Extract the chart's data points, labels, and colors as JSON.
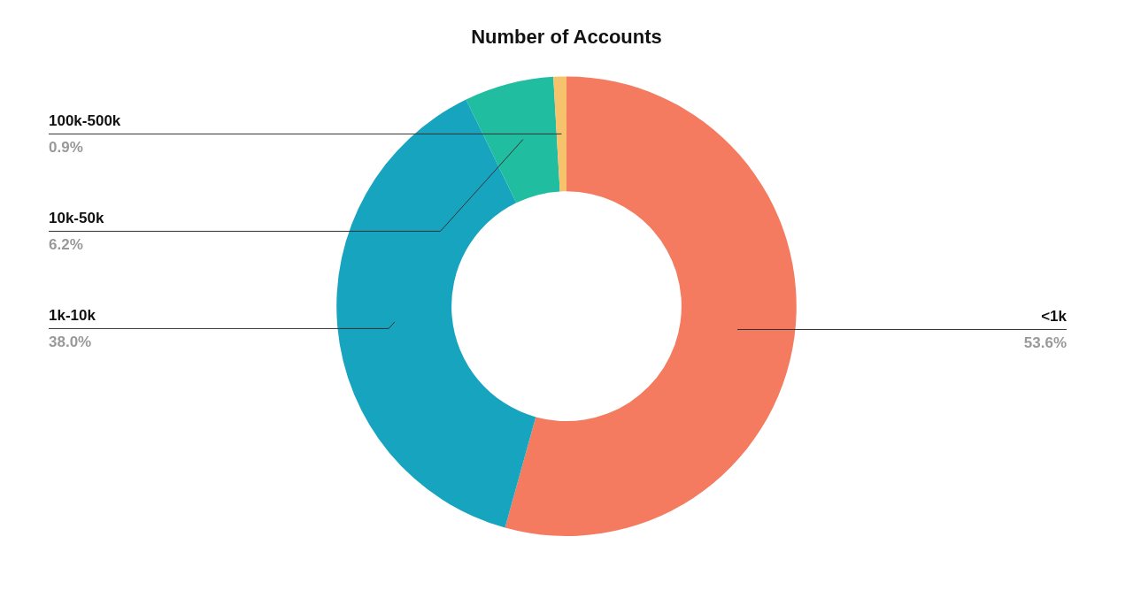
{
  "chart_data": {
    "type": "donut",
    "title": "Number of Accounts",
    "categories": [
      "<1k",
      "1k-10k",
      "10k-50k",
      "100k-500k"
    ],
    "values": [
      53.6,
      38.0,
      6.2,
      0.9
    ],
    "value_labels": [
      "53.6%",
      "38.0%",
      "6.2%",
      "0.9%"
    ],
    "colors": [
      "#f47b60",
      "#17a4bf",
      "#20bda0",
      "#f6c26b"
    ],
    "legend": false
  }
}
